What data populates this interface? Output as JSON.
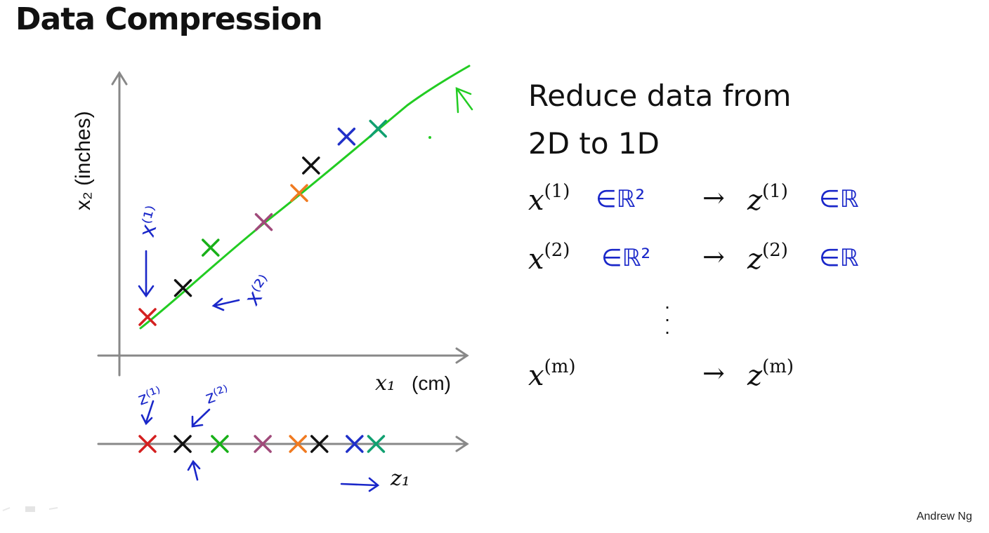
{
  "slide": {
    "title": "Data Compression",
    "credit": "Andrew Ng"
  },
  "plot": {
    "y_axis_label": "x₂ (inches)",
    "x_axis_label_var": "x₁",
    "x_axis_label_unit": "(cm)",
    "z_axis_label": "z₁",
    "line_color": "#22cc22",
    "points": [
      {
        "color": "#d42020",
        "z": 0.0
      },
      {
        "color": "#111111",
        "z": 0.18
      },
      {
        "color": "#18b018",
        "z": 0.37,
        "off": "above"
      },
      {
        "color": "#a04a7a",
        "z": 0.59
      },
      {
        "color": "#f07a20",
        "z": 0.77
      },
      {
        "color": "#111111",
        "z": 0.88,
        "off": "above"
      },
      {
        "color": "#2030c8",
        "z": 1.06,
        "off": "above"
      },
      {
        "color": "#10a070",
        "z": 1.17
      }
    ],
    "annotations": {
      "x1_label": "x⁽¹⁾",
      "x2_label": "x⁽²⁾",
      "z1_label": "z⁽¹⁾",
      "z2_label": "z⁽²⁾",
      "ink_color": "#1a27c9"
    }
  },
  "text_panel": {
    "line1": "Reduce data from",
    "line2": "2D to 1D",
    "rows": [
      {
        "lhs_var": "x",
        "lhs_sup": "(1)",
        "lhs_note": "∈ℝ²",
        "arrow": "→",
        "rhs_var": "z",
        "rhs_sup": "(1)",
        "rhs_note": "∈ℝ"
      },
      {
        "lhs_var": "x",
        "lhs_sup": "(2)",
        "lhs_note": "∈ℝ²",
        "arrow": "→",
        "rhs_var": "z",
        "rhs_sup": "(2)",
        "rhs_note": "∈ℝ"
      },
      {
        "lhs_var": "x",
        "lhs_sup": "(m)",
        "lhs_note": "",
        "arrow": "→",
        "rhs_var": "z",
        "rhs_sup": "(m)",
        "rhs_note": ""
      }
    ],
    "vdots": "⋮"
  }
}
